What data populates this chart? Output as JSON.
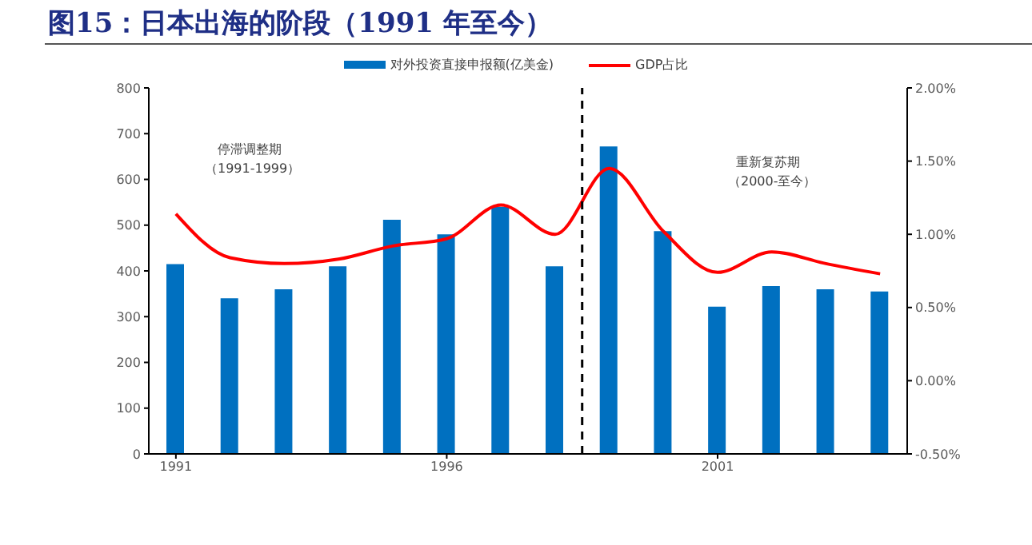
{
  "chart_data": {
    "type": "bar",
    "title": "图15：日本出海的阶段（1991 年至今）",
    "x": [
      1991,
      1992,
      1993,
      1994,
      1995,
      1996,
      1997,
      1998,
      1999,
      2000,
      2001,
      2002,
      2003,
      2004
    ],
    "xlim": [
      1990.5,
      2004.5
    ],
    "xticks": [
      1991,
      1996,
      2001
    ],
    "series": [
      {
        "name": "对外投资直接申报额(亿美金)",
        "color": "#0070c0",
        "values": [
          415,
          340,
          360,
          410,
          512,
          480,
          540,
          410,
          672,
          487,
          322,
          367,
          360,
          355
        ]
      },
      {
        "name": "GDP占比",
        "type": "line",
        "axis": "y2",
        "color": "#ff0000",
        "values": [
          1.14,
          0.84,
          0.8,
          0.83,
          0.92,
          0.97,
          1.2,
          1.0,
          1.45,
          1.02,
          0.74,
          0.88,
          0.8,
          0.73
        ]
      }
    ],
    "ylim": [
      0,
      800
    ],
    "yticks": [
      0,
      100,
      200,
      300,
      400,
      500,
      600,
      700,
      800
    ],
    "y2lim": [
      -0.5,
      2.0
    ],
    "y2ticks": [
      {
        "value": -0.5,
        "label": "-0.50%"
      },
      {
        "value": 0,
        "label": "0.00%"
      },
      {
        "value": 0.5,
        "label": "0.50%"
      },
      {
        "value": 1.0,
        "label": "1.00%"
      },
      {
        "value": 1.5,
        "label": "1.50%"
      },
      {
        "value": 2.0,
        "label": "2.00%"
      }
    ],
    "ref_lines": [
      {
        "axis": "x",
        "value": 1998.5,
        "color": "#000000",
        "line_style": "dashed"
      }
    ],
    "annotations": [
      "停滞调整期",
      "（1991-1999）",
      "重新复苏期",
      "（2000-至今）"
    ],
    "legend": "top",
    "grid": false,
    "marker": "none"
  }
}
